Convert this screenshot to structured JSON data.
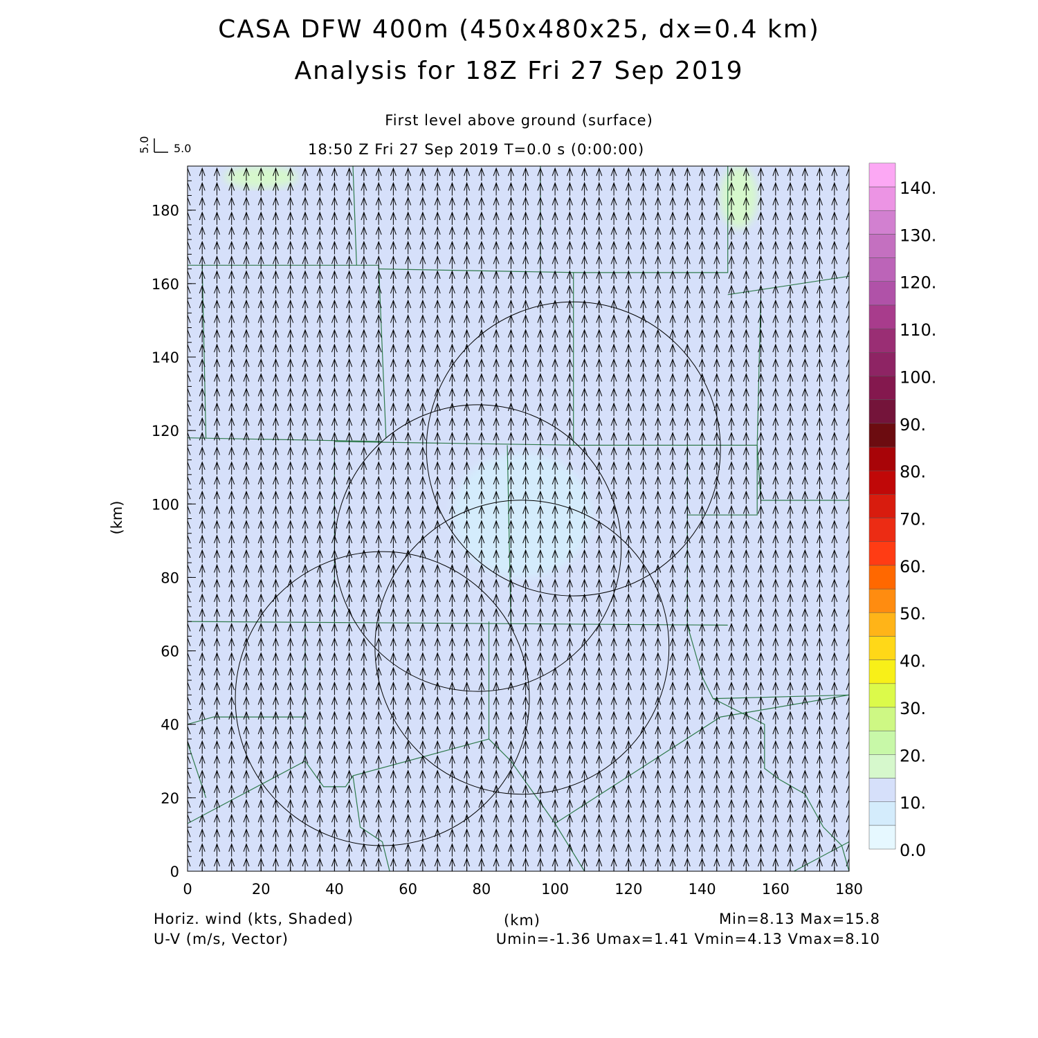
{
  "header": {
    "title_line1": "CASA DFW 400m (450x480x25, dx=0.4 km)",
    "title_line2": "Analysis for 18Z Fri 27 Sep 2019",
    "subtitle_level": "First level above ground (surface)",
    "subtitle_time": "18:50 Z Fri 27 Sep 2019    T=0.0 s (0:00:00)"
  },
  "vector_key": {
    "u_label": "5.0",
    "v_label": "5.0"
  },
  "footer": {
    "left_line1": "Horiz. wind (kts, Shaded)",
    "left_line2": "U-V (m/s, Vector)",
    "center_label": "(km)",
    "right_line1": "Min=8.13 Max=15.8",
    "right_line2": "Umin=-1.36 Umax=1.41 Vmin=4.13 Vmax=8.10"
  },
  "chart_data": {
    "type": "heatmap",
    "ylabel": "(km)",
    "xlabel": "(km)",
    "xlim": [
      0,
      180
    ],
    "ylim": [
      0,
      192
    ],
    "x_ticks": [
      0,
      20,
      40,
      60,
      80,
      100,
      120,
      140,
      160,
      180
    ],
    "y_ticks": [
      0,
      20,
      40,
      60,
      80,
      100,
      120,
      140,
      160,
      180
    ],
    "colorbar": {
      "levels": [
        0,
        5,
        10,
        15,
        20,
        25,
        30,
        35,
        40,
        45,
        50,
        55,
        60,
        65,
        70,
        75,
        80,
        85,
        90,
        95,
        100,
        105,
        110,
        115,
        120,
        125,
        130,
        135,
        140
      ],
      "labels": [
        "0.0",
        "10.",
        "20.",
        "30.",
        "40.",
        "50.",
        "60.",
        "70.",
        "80.",
        "90.",
        "100.",
        "110.",
        "120.",
        "130.",
        "140."
      ],
      "label_values": [
        0,
        10,
        20,
        30,
        40,
        50,
        60,
        70,
        80,
        90,
        100,
        110,
        120,
        130,
        140
      ],
      "colors": [
        "#e6f8ff",
        "#d4ecfc",
        "#d6e0fa",
        "#d6f8cc",
        "#c8f8a8",
        "#cef884",
        "#dcfa4a",
        "#f8f018",
        "#ffd818",
        "#ffb418",
        "#ff8c10",
        "#ff6800",
        "#ff3c14",
        "#ec2c14",
        "#d81c0e",
        "#c00808",
        "#a80408",
        "#6c0c10",
        "#74143a",
        "#84184e",
        "#8e2464",
        "#9a2e74",
        "#a83c8c",
        "#b052a8",
        "#bc64b8",
        "#c470c0",
        "#d280d0",
        "#ec94e4",
        "#fca8f4"
      ]
    },
    "background_field_value": 12,
    "regions": [
      {
        "name": "lighter-center",
        "value": 8,
        "x_range": [
          72,
          110
        ],
        "y_range": [
          80,
          114
        ]
      },
      {
        "name": "green-top-left",
        "value": 16,
        "x_range": [
          10,
          30
        ],
        "y_range": [
          186,
          192
        ]
      },
      {
        "name": "green-top-right",
        "value": 16,
        "x_range": [
          145,
          155
        ],
        "y_range": [
          175,
          192
        ]
      }
    ],
    "vectors": {
      "u_typical": 0.0,
      "v_typical": 6.0,
      "spacing_km": 4
    },
    "range_rings": [
      {
        "cx": 105,
        "cy": 115,
        "r": 40
      },
      {
        "cx": 79,
        "cy": 88,
        "r": 39
      },
      {
        "cx": 91,
        "cy": 61,
        "r": 40
      },
      {
        "cx": 53,
        "cy": 47,
        "r": 40
      }
    ],
    "county_lines": [
      [
        [
          0,
          165
        ],
        [
          52,
          165
        ]
      ],
      [
        [
          0,
          118
        ],
        [
          53,
          117
        ]
      ],
      [
        [
          0,
          68
        ],
        [
          147,
          67
        ]
      ],
      [
        [
          40,
          117
        ],
        [
          106,
          116
        ],
        [
          155,
          116
        ]
      ],
      [
        [
          4,
          165
        ],
        [
          5,
          118
        ]
      ],
      [
        [
          52,
          165
        ],
        [
          54,
          118
        ]
      ],
      [
        [
          45,
          192
        ],
        [
          46,
          165
        ]
      ],
      [
        [
          52,
          164
        ],
        [
          106,
          163
        ],
        [
          147,
          163
        ],
        [
          147,
          192
        ]
      ],
      [
        [
          96,
          192
        ],
        [
          96,
          163
        ]
      ],
      [
        [
          105,
          163
        ],
        [
          105,
          116
        ]
      ],
      [
        [
          40,
          117
        ],
        [
          40,
          67
        ]
      ],
      [
        [
          87,
          116
        ],
        [
          88,
          67
        ]
      ],
      [
        [
          136,
          116
        ],
        [
          136,
          67
        ]
      ],
      [
        [
          136,
          97
        ],
        [
          155,
          97
        ],
        [
          155,
          116
        ]
      ],
      [
        [
          155,
          116
        ],
        [
          156,
          101
        ],
        [
          180,
          101
        ]
      ],
      [
        [
          147,
          157
        ],
        [
          180,
          162
        ]
      ],
      [
        [
          156,
          157
        ],
        [
          155,
          116
        ]
      ],
      [
        [
          32,
          68
        ],
        [
          32,
          30
        ],
        [
          0,
          13
        ]
      ],
      [
        [
          0,
          40
        ],
        [
          7,
          42
        ],
        [
          32,
          42
        ]
      ],
      [
        [
          32,
          30
        ],
        [
          37,
          23
        ],
        [
          43,
          23
        ],
        [
          45,
          26
        ],
        [
          82,
          36
        ]
      ],
      [
        [
          82,
          36
        ],
        [
          82,
          68
        ]
      ],
      [
        [
          82,
          36
        ],
        [
          88,
          30
        ],
        [
          100,
          13
        ],
        [
          108,
          0
        ]
      ],
      [
        [
          100,
          13
        ],
        [
          145,
          42
        ],
        [
          180,
          48
        ]
      ],
      [
        [
          45,
          26
        ],
        [
          47,
          12
        ],
        [
          53,
          8
        ],
        [
          55,
          0
        ]
      ],
      [
        [
          136,
          67
        ],
        [
          140,
          53
        ],
        [
          143,
          47
        ],
        [
          157,
          40
        ],
        [
          157,
          28
        ],
        [
          161,
          25
        ],
        [
          168,
          21
        ],
        [
          173,
          12
        ],
        [
          178,
          7
        ],
        [
          180,
          0
        ]
      ],
      [
        [
          143,
          47
        ],
        [
          180,
          48
        ]
      ],
      [
        [
          165,
          0
        ],
        [
          180,
          8
        ]
      ],
      [
        [
          0,
          35
        ],
        [
          5,
          20
        ]
      ]
    ]
  }
}
